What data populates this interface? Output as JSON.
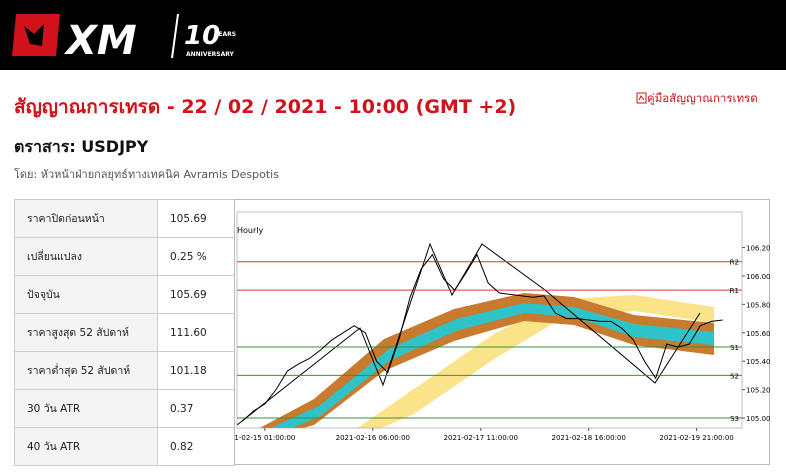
{
  "header": {
    "logo": "XM",
    "badge_number": "10",
    "badge_years": "YEARS",
    "badge_anniversary": "ANNIVERSARY"
  },
  "title": "สัญญาณการเทรด - 22 / 02 / 2021 - 10:00 (GMT +2)",
  "guide_link": "คู่มือสัญญาณการเทรด",
  "instrument": "ตราสาร: USDJPY",
  "author": "โดย: หัวหน้าฝ่ายกลยุทธ์ทางเทคนิค Avramis Despotis",
  "table": {
    "rows": [
      [
        "ราคาปิดก่อนหน้า",
        "105.69"
      ],
      [
        "เปลี่ยนแปลง",
        "0.25 %"
      ],
      [
        "ปัจจุบัน",
        "105.69"
      ],
      [
        "ราคาสูงสุด 52 สัปดาห์",
        "111.60"
      ],
      [
        "ราคาต่ำสุด 52 สัปดาห์",
        "101.18"
      ],
      [
        "30 วัน ATR",
        "0.37"
      ],
      [
        "40 วัน ATR",
        "0.82"
      ]
    ]
  },
  "chart_data": {
    "type": "line",
    "title": "Hourly",
    "x": [
      -6,
      -3,
      0,
      3,
      6,
      9,
      12,
      15,
      18,
      21,
      24,
      27,
      30,
      33,
      36,
      39,
      42,
      45,
      48,
      51,
      54,
      57,
      60,
      63,
      66,
      69,
      72,
      75,
      78,
      81,
      84,
      87,
      90,
      93,
      96,
      99,
      102,
      105,
      108,
      111,
      114,
      117,
      120,
      123
    ],
    "series": [
      {
        "color": "#000000",
        "values": [
          104.98,
          105.05,
          105.1,
          105.2,
          105.33,
          105.38,
          105.42,
          105.48,
          105.55,
          105.6,
          105.65,
          105.6,
          105.4,
          105.32,
          105.55,
          105.85,
          106.05,
          106.15,
          105.98,
          105.9,
          106.02,
          106.15,
          105.95,
          105.88,
          105.87,
          105.86,
          105.85,
          105.86,
          105.74,
          105.7,
          105.7,
          105.69,
          105.68,
          105.68,
          105.63,
          105.55,
          105.4,
          105.28,
          105.52,
          105.5,
          105.52,
          105.65,
          105.68,
          105.69
        ]
      }
    ],
    "xlim": [
      -7.5,
      128.2
    ],
    "xticks": [
      {
        "value": 0,
        "label": "1-02-15 01:00:00"
      },
      {
        "value": 29,
        "label": "2021-02-16 06:00:00"
      },
      {
        "value": 58,
        "label": "2021-02-17 11:00:00"
      },
      {
        "value": 87,
        "label": "2021-02-18 16:00:00"
      },
      {
        "value": 116,
        "label": "2021-02-19 21:00:00"
      }
    ],
    "ylim": [
      104.93,
      106.45
    ],
    "yticks": [
      {
        "value": 106.2,
        "label": "106.20"
      },
      {
        "value": 106,
        "label": "106.00"
      },
      {
        "value": 105.8,
        "label": "105.80"
      },
      {
        "value": 105.6,
        "label": "105.60"
      },
      {
        "value": 105.4,
        "label": "105.40"
      },
      {
        "value": 105.2,
        "label": "105.20"
      },
      {
        "value": 105,
        "label": "105.00"
      }
    ],
    "levels": [
      {
        "label": "R2",
        "value": 106.1,
        "color": "#d43a3a"
      },
      {
        "label": "R1",
        "value": 105.9,
        "color": "#d43a3a"
      },
      {
        "label": "S1",
        "value": 105.5,
        "color": "#3a8f3a"
      },
      {
        "label": "S2",
        "value": 105.3,
        "color": "#3a8f3a"
      },
      {
        "label": "S3",
        "value": 105,
        "color": "#3a8f3a"
      }
    ]
  }
}
